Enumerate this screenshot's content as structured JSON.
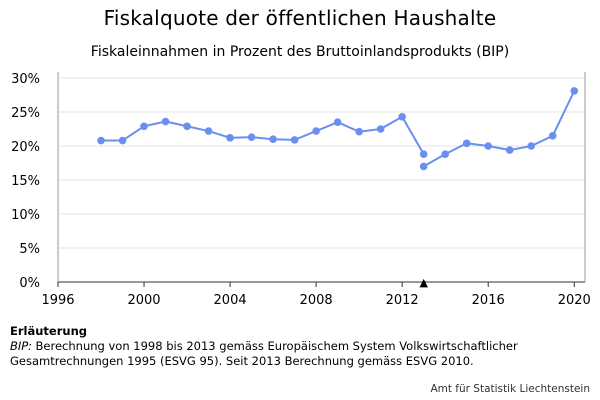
{
  "chart_data": {
    "type": "line",
    "title": "Fiskalquote der öffentlichen Haushalte",
    "subtitle": "Fiskaleinnahmen in Prozent des Bruttoinlandsprodukts (BIP)",
    "xlim": [
      1996,
      2020.5
    ],
    "ylim": [
      0,
      30
    ],
    "x_ticks": [
      1996,
      2000,
      2004,
      2008,
      2012,
      2016,
      2020
    ],
    "x_tick_labels": [
      "1996",
      "2000",
      "2004",
      "2008",
      "2012",
      "2016",
      "2020"
    ],
    "y_ticks": [
      0,
      5,
      10,
      15,
      20,
      25,
      30
    ],
    "y_tick_labels": [
      "0%",
      "5%",
      "10%",
      "15%",
      "20%",
      "25%",
      "30%"
    ],
    "grid": true,
    "color": "#6b8ff0",
    "series": [
      {
        "x": [
          1998,
          1999,
          2000,
          2001,
          2002,
          2003,
          2004,
          2005,
          2006,
          2007,
          2008,
          2009,
          2010,
          2011,
          2012,
          2013
        ],
        "values": [
          20.8,
          20.8,
          22.9,
          23.6,
          22.9,
          22.2,
          21.2,
          21.3,
          21.0,
          20.9,
          22.2,
          23.5,
          22.1,
          22.5,
          24.3,
          18.8
        ]
      },
      {
        "x": [
          2013,
          2014,
          2015,
          2016,
          2017,
          2018,
          2019,
          2020
        ],
        "values": [
          17.0,
          18.8,
          20.4,
          20.0,
          19.4,
          20.0,
          21.5,
          28.1
        ]
      }
    ],
    "marker": {
      "x": 2013,
      "symbol": "▲"
    }
  },
  "note": {
    "heading": "Erläuterung",
    "abbr": "BIP:",
    "text": " Berechnung von 1998 bis 2013 gemäss Europäischem System Volkswirtschaftlicher Gesamtrechnungen 1995 (ESVG 95). Seit 2013 Berechnung gemäss ESVG 2010."
  },
  "source": "Amt für Statistik Liechtenstein"
}
